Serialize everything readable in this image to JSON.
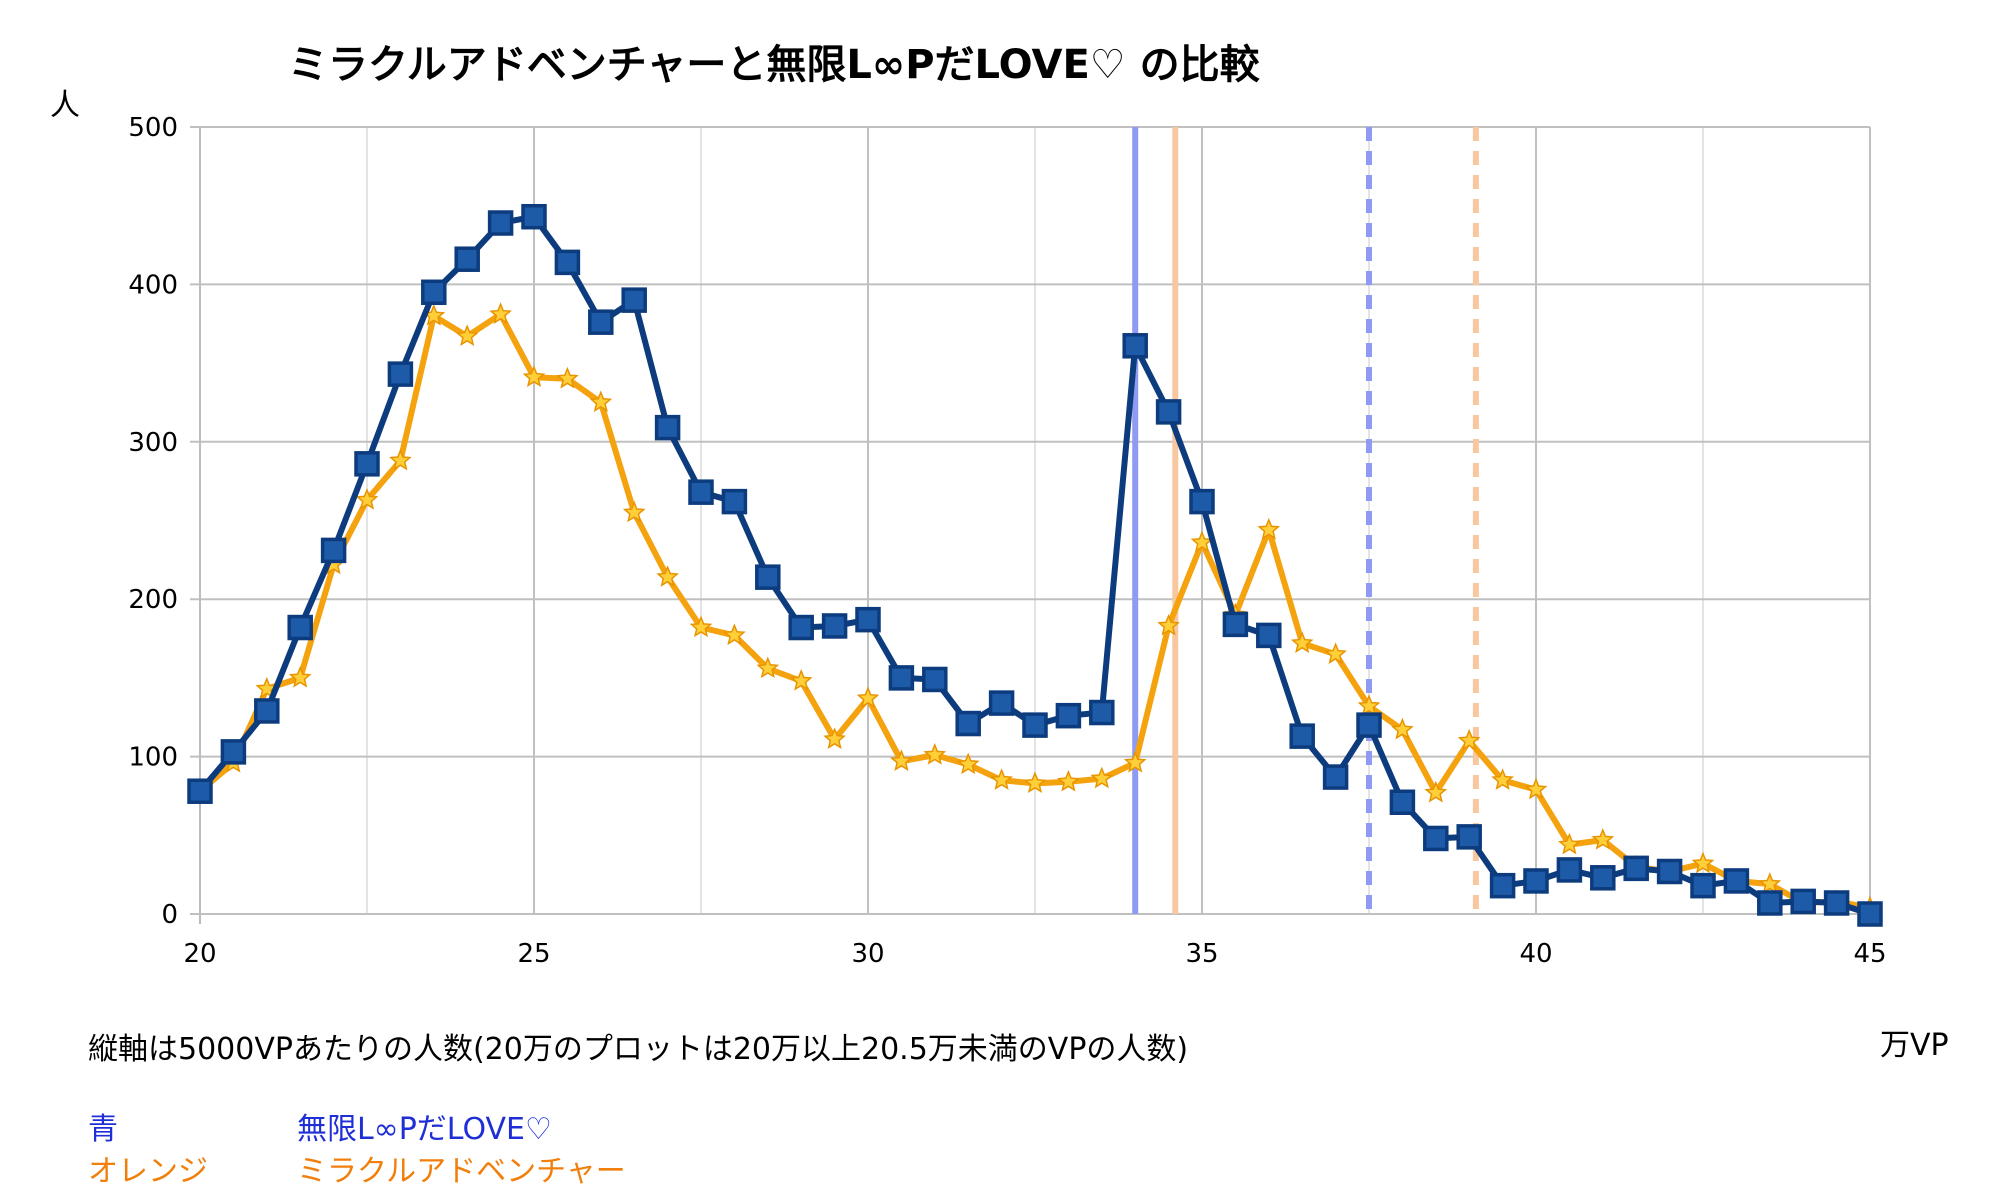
{
  "chart_data": {
    "type": "line",
    "title": "ミラクルアドベンチャーと無限L∞PだLOVE♡ の比較",
    "ylabel": "人",
    "xlabel": "万VP",
    "xlim": [
      20,
      45
    ],
    "ylim": [
      0,
      500
    ],
    "xticks": [
      "20",
      "25",
      "30",
      "35",
      "40",
      "45"
    ],
    "yticks": [
      "0",
      "100",
      "200",
      "300",
      "400",
      "500"
    ],
    "grid": true,
    "x": [
      20,
      20.5,
      21,
      21.5,
      22,
      22.5,
      23,
      23.5,
      24,
      24.5,
      25,
      25.5,
      26,
      26.5,
      27,
      27.5,
      28,
      28.5,
      29,
      29.5,
      30,
      30.5,
      31,
      31.5,
      32,
      32.5,
      33,
      33.5,
      34,
      34.5,
      35,
      35.5,
      36,
      36.5,
      37,
      37.5,
      38,
      38.5,
      39,
      39.5,
      40,
      40.5,
      41,
      41.5,
      42,
      42.5,
      43,
      43.5,
      44,
      44.5,
      45
    ],
    "series": [
      {
        "name": "無限L∞PだLOVE♡",
        "color": "#0d3c7e",
        "marker": "square",
        "values": [
          78,
          103,
          129,
          182,
          231,
          286,
          343,
          395,
          416,
          439,
          443,
          414,
          376,
          390,
          309,
          268,
          262,
          214,
          182,
          183,
          187,
          150,
          149,
          121,
          134,
          120,
          126,
          128,
          361,
          319,
          262,
          184,
          177,
          113,
          87,
          120,
          71,
          48,
          49,
          18,
          21,
          28,
          23,
          29,
          27,
          18,
          21,
          7,
          8,
          7,
          0
        ]
      },
      {
        "name": "ミラクルアドベンチャー",
        "color": "#f5a20f",
        "marker": "star",
        "values": [
          78,
          96,
          143,
          150,
          222,
          263,
          288,
          380,
          367,
          381,
          341,
          340,
          325,
          255,
          214,
          182,
          177,
          156,
          148,
          111,
          137,
          97,
          101,
          95,
          85,
          83,
          84,
          86,
          96,
          183,
          236,
          190,
          244,
          172,
          165,
          132,
          117,
          77,
          110,
          85,
          79,
          44,
          47,
          30,
          27,
          32,
          21,
          19,
          7,
          8,
          4
        ]
      }
    ],
    "reference_lines": [
      {
        "x": 34.0,
        "color": "#8f9bf2",
        "style": "solid"
      },
      {
        "x": 34.6,
        "color": "#f7c8a0",
        "style": "solid"
      },
      {
        "x": 37.5,
        "color": "#8f9bf2",
        "style": "dashed"
      },
      {
        "x": 39.1,
        "color": "#f7c8a0",
        "style": "dashed"
      }
    ]
  },
  "notes": {
    "footnote": "縦軸は5000VPあたりの人数(20万のプロットは20万以上20.5万未満のVPの人数)",
    "legend_blue_key": "青",
    "legend_blue_name": "無限L∞PだLOVE♡",
    "legend_orange_key": "オレンジ",
    "legend_orange_name": "ミラクルアドベンチャー"
  },
  "colors": {
    "blue_text": "#1f2fd6",
    "orange_text": "#f07f0c",
    "grid": "#c8c8c8"
  }
}
